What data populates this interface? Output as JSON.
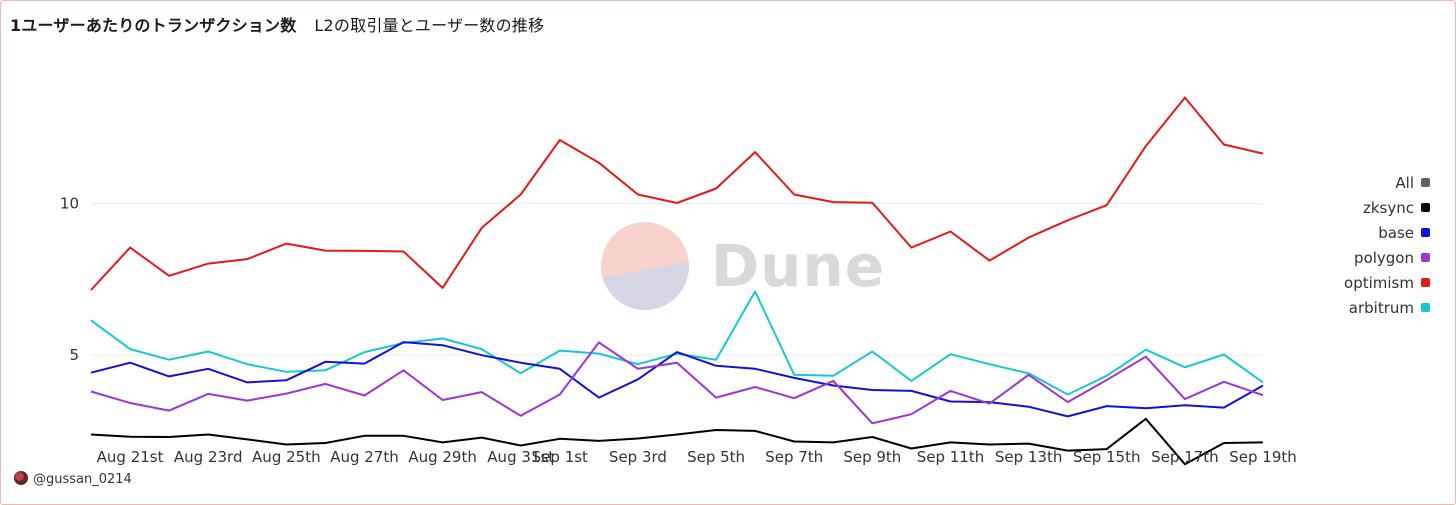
{
  "title_main": "1ユーザーあたりのトランザクション数",
  "title_sub": "L2の取引量とユーザー数の推移",
  "author": "@gussan_0214",
  "watermark_text": "Dune",
  "legend": [
    {
      "name": "All",
      "color": "#5f6368"
    },
    {
      "name": "zksync",
      "color": "#000000"
    },
    {
      "name": "base",
      "color": "#1111d8"
    },
    {
      "name": "polygon",
      "color": "#9b36d8"
    },
    {
      "name": "optimism",
      "color": "#e41a1a"
    },
    {
      "name": "arbitrum",
      "color": "#19c7d4"
    }
  ],
  "chart_data": {
    "type": "line",
    "x": [
      "Aug 20",
      "Aug 21",
      "Aug 22",
      "Aug 23",
      "Aug 24",
      "Aug 25",
      "Aug 26",
      "Aug 27",
      "Aug 28",
      "Aug 29",
      "Aug 30",
      "Aug 31",
      "Sep 1",
      "Sep 2",
      "Sep 3",
      "Sep 4",
      "Sep 5",
      "Sep 6",
      "Sep 7",
      "Sep 8",
      "Sep 9",
      "Sep 10",
      "Sep 11",
      "Sep 12",
      "Sep 13",
      "Sep 14",
      "Sep 15",
      "Sep 16",
      "Sep 17",
      "Sep 18",
      "Sep 19"
    ],
    "x_tick_labels": [
      "Aug 21st",
      "Aug 23rd",
      "Aug 25th",
      "Aug 27th",
      "Aug 29th",
      "Aug 31st",
      "Sep 1st",
      "Sep 3rd",
      "Sep 5th",
      "Sep 7th",
      "Sep 9th",
      "Sep 11th",
      "Sep 13th",
      "Sep 15th",
      "Sep 17th",
      "Sep 19th"
    ],
    "y_ticks": [
      5,
      10
    ],
    "ylim": [
      2.2,
      15.4
    ],
    "grid": "horizontal",
    "legend_position": "right",
    "series": [
      {
        "name": "optimism",
        "color": "#e41a1a",
        "values": [
          7.15,
          8.55,
          7.62,
          8.02,
          8.17,
          8.68,
          8.45,
          8.44,
          8.42,
          7.22,
          9.2,
          10.3,
          12.1,
          11.35,
          10.3,
          10.02,
          10.5,
          11.7,
          10.3,
          10.05,
          10.03,
          8.55,
          9.08,
          8.12,
          8.88,
          9.45,
          9.95,
          11.9,
          13.5,
          11.95,
          11.65
        ]
      },
      {
        "name": "arbitrum",
        "color": "#19c7d4",
        "values": [
          6.15,
          5.2,
          4.85,
          5.12,
          4.7,
          4.45,
          4.5,
          5.1,
          5.4,
          5.55,
          5.2,
          4.4,
          5.15,
          5.05,
          4.7,
          5.05,
          4.85,
          7.1,
          4.35,
          4.32,
          5.12,
          4.15,
          5.03,
          4.7,
          4.4,
          3.7,
          4.32,
          5.18,
          4.6,
          5.02,
          4.1
        ]
      },
      {
        "name": "base",
        "color": "#1111d8",
        "values": [
          4.42,
          4.75,
          4.3,
          4.55,
          4.1,
          4.17,
          4.78,
          4.72,
          5.43,
          5.33,
          5.0,
          4.75,
          4.55,
          3.6,
          4.2,
          5.1,
          4.65,
          4.55,
          4.25,
          4.0,
          3.85,
          3.82,
          3.47,
          3.45,
          3.3,
          2.98,
          3.32,
          3.25,
          3.35,
          3.27,
          4.0
        ]
      },
      {
        "name": "polygon",
        "color": "#9b36d8",
        "values": [
          3.8,
          3.42,
          3.17,
          3.72,
          3.5,
          3.73,
          4.05,
          3.67,
          4.5,
          3.52,
          3.78,
          3.0,
          3.7,
          5.42,
          4.55,
          4.75,
          3.6,
          3.95,
          3.58,
          4.15,
          2.75,
          3.05,
          3.82,
          3.4,
          4.35,
          3.45,
          4.18,
          4.95,
          3.55,
          4.12,
          3.68
        ]
      },
      {
        "name": "zksync",
        "color": "#000000",
        "values": [
          2.38,
          2.31,
          2.3,
          2.38,
          2.22,
          2.05,
          2.1,
          2.34,
          2.34,
          2.12,
          2.28,
          2.02,
          2.24,
          2.17,
          2.25,
          2.38,
          2.53,
          2.5,
          2.15,
          2.12,
          2.3,
          1.92,
          2.12,
          2.05,
          2.08,
          1.85,
          1.9,
          2.9,
          1.4,
          2.1,
          2.12
        ]
      }
    ]
  }
}
